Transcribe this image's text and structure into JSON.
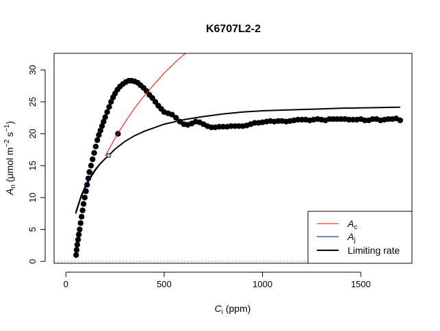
{
  "chart_data": {
    "type": "scatter",
    "title": "K6707L2-2",
    "xlabel": {
      "main": "C",
      "sub": "i",
      "unit": "(ppm)"
    },
    "ylabel": {
      "main": "A",
      "sub": "n",
      "unit_prefix": "(μmol m",
      "unit_exp1": "−2",
      "unit_mid": " s",
      "unit_exp2": "−1",
      "unit_suffix": ")"
    },
    "xlim": [
      -60,
      1760
    ],
    "ylim": [
      -0.3,
      32.6
    ],
    "xticks": [
      0,
      500,
      1000,
      1500
    ],
    "yticks": [
      0,
      5,
      10,
      15,
      20,
      25,
      30
    ],
    "grid": false,
    "legend": {
      "position": "bottom-right",
      "entries": [
        {
          "label": "A",
          "sub": "c",
          "color": "#ff0000",
          "width": 1
        },
        {
          "label": "A",
          "sub": "j",
          "color": "#00008b",
          "width": 1
        },
        {
          "label": "Limiting rate",
          "sub": "",
          "color": "#000000",
          "width": 2
        }
      ]
    },
    "series": [
      {
        "kind": "points",
        "color": "#000000",
        "x": [
          52,
          55,
          58,
          62,
          66,
          70,
          75,
          80,
          85,
          90,
          96,
          102,
          108,
          114,
          120,
          128,
          136,
          144,
          152,
          160,
          168,
          176,
          184,
          192,
          200,
          210,
          220,
          230,
          240,
          250,
          262,
          275,
          290,
          305,
          320,
          335,
          350,
          365,
          380,
          395,
          410,
          425,
          440,
          455,
          470,
          485,
          500,
          520,
          540,
          560,
          580,
          600,
          620,
          640,
          660,
          680,
          700,
          720,
          740,
          760,
          780,
          800,
          820,
          840,
          860,
          880,
          900,
          920,
          940,
          960,
          980,
          1000,
          1020,
          1040,
          1060,
          1080,
          1100,
          1120,
          1140,
          1160,
          1180,
          1200,
          1220,
          1240,
          1260,
          1280,
          1300,
          1320,
          1340,
          1360,
          1380,
          1400,
          1420,
          1440,
          1460,
          1480,
          1500,
          1520,
          1540,
          1560,
          1580,
          1600,
          1620,
          1640,
          1660,
          1680,
          1700,
          265
        ],
        "y": [
          1.0,
          1.8,
          2.6,
          3.4,
          4.2,
          5.0,
          6.0,
          7.0,
          8.0,
          9.0,
          10.0,
          11.0,
          12.0,
          13.0,
          14.0,
          15.0,
          16.0,
          17.0,
          18.0,
          19.0,
          19.8,
          20.5,
          21.2,
          21.9,
          22.6,
          23.4,
          24.2,
          25.0,
          25.7,
          26.3,
          26.9,
          27.4,
          27.8,
          28.1,
          28.3,
          28.3,
          28.2,
          28.0,
          27.6,
          27.2,
          26.7,
          26.1,
          25.6,
          25.0,
          24.4,
          23.9,
          23.4,
          23.2,
          23.0,
          22.5,
          21.9,
          21.5,
          21.4,
          21.6,
          21.9,
          21.8,
          21.5,
          21.2,
          21.0,
          21.0,
          21.1,
          21.1,
          21.1,
          21.2,
          21.2,
          21.2,
          21.2,
          21.3,
          21.5,
          21.7,
          21.7,
          21.8,
          21.9,
          22.0,
          21.9,
          22.0,
          22.0,
          21.9,
          22.0,
          22.1,
          22.2,
          22.2,
          22.2,
          22.1,
          22.2,
          22.3,
          22.2,
          22.1,
          22.3,
          22.3,
          22.3,
          22.3,
          22.3,
          22.2,
          22.2,
          22.2,
          22.3,
          22.1,
          22.1,
          22.3,
          22.3,
          22.1,
          22.2,
          22.3,
          22.3,
          22.4,
          22.1,
          20.0
        ]
      },
      {
        "kind": "line",
        "name": "Ac",
        "color": "#ff0000",
        "width": 1,
        "x": [
          200,
          250,
          300,
          350,
          400,
          450,
          500,
          550,
          600,
          650,
          700
        ],
        "y": [
          16.5,
          19.3,
          21.8,
          24.0,
          26.0,
          27.8,
          29.5,
          31.0,
          32.4,
          33.7,
          34.9
        ]
      },
      {
        "kind": "line",
        "name": "Aj",
        "color": "#00008b",
        "width": 1,
        "x": [
          50,
          75,
          100,
          125,
          150,
          175,
          200,
          218
        ],
        "y": [
          7.8,
          10.2,
          12.0,
          13.4,
          14.5,
          15.4,
          16.1,
          16.6
        ]
      },
      {
        "kind": "line",
        "name": "Limiting rate",
        "color": "#000000",
        "width": 2,
        "x": [
          50,
          75,
          100,
          125,
          150,
          175,
          200,
          218,
          250,
          300,
          350,
          400,
          500,
          600,
          700,
          800,
          900,
          1000,
          1100,
          1200,
          1300,
          1400,
          1500,
          1600,
          1700
        ],
        "y": [
          7.5,
          9.9,
          11.7,
          13.1,
          14.3,
          15.3,
          16.1,
          16.6,
          17.6,
          18.8,
          19.7,
          20.4,
          21.5,
          22.2,
          22.7,
          23.1,
          23.4,
          23.6,
          23.7,
          23.8,
          23.9,
          24.0,
          24.05,
          24.1,
          24.15
        ]
      }
    ],
    "marker": {
      "x": 218,
      "y": 16.6,
      "fill": "#c0c0c0"
    },
    "zero_line": {
      "y": 0,
      "color": "#a0a0a0",
      "dash": "dotted"
    }
  }
}
